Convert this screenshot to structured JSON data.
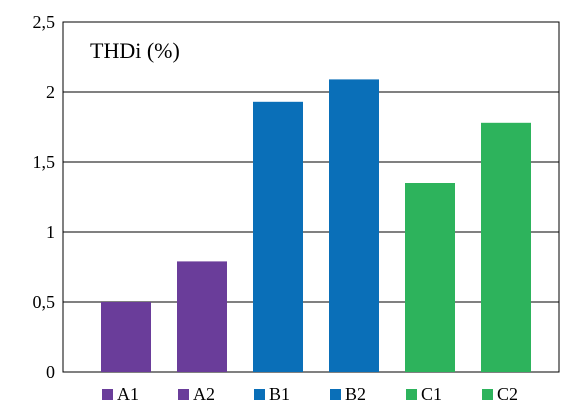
{
  "chart_data": {
    "type": "bar",
    "title": "THDi (%)",
    "xlabel": "",
    "ylabel": "",
    "categories": [
      "A1",
      "A2",
      "B1",
      "B2",
      "C1",
      "C2"
    ],
    "values": [
      0.5,
      0.79,
      1.93,
      2.09,
      1.35,
      1.78
    ],
    "colors": [
      "#6a3d9a",
      "#6a3d9a",
      "#0a6fb8",
      "#0a6fb8",
      "#2db35c",
      "#2db35c"
    ],
    "ylim": [
      0,
      2.5
    ],
    "yticks": [
      {
        "value": 0,
        "label": "0"
      },
      {
        "value": 0.5,
        "label": "0,5"
      },
      {
        "value": 1,
        "label": "1"
      },
      {
        "value": 1.5,
        "label": "1,5"
      },
      {
        "value": 2,
        "label": "2"
      },
      {
        "value": 2.5,
        "label": "2,5"
      }
    ],
    "grid": true,
    "legend_position": "bottom"
  }
}
